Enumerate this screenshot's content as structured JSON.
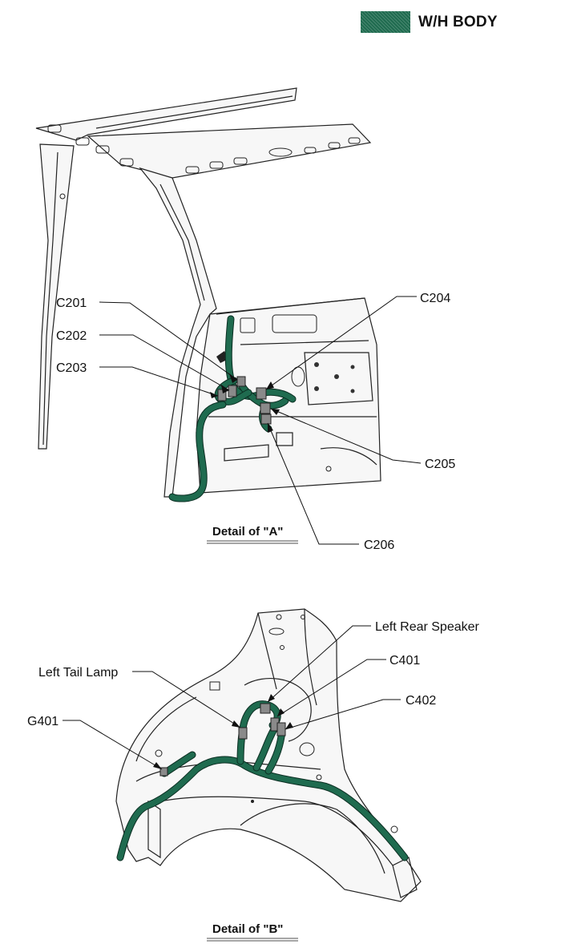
{
  "legend": {
    "label": "W/H BODY",
    "color": "#1f6b4f"
  },
  "detail_a": {
    "caption": "Detail of \"A\"",
    "labels": {
      "c201": "C201",
      "c202": "C202",
      "c203": "C203",
      "c204": "C204",
      "c205": "C205",
      "c206": "C206"
    }
  },
  "detail_b": {
    "caption": "Detail of \"B\"",
    "labels": {
      "speaker": "Left Rear Speaker",
      "c401": "C401",
      "tail_lamp": "Left Tail Lamp",
      "c402": "C402",
      "g401": "G401"
    }
  }
}
